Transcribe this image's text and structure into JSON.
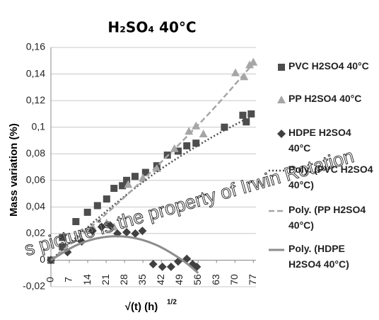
{
  "chart_data": {
    "type": "scatter",
    "title": "H₂SO₄ 40°C",
    "xlabel": "√(t) (h)",
    "xlabel_exponent": "1/2",
    "ylabel": "Mass variation (%)",
    "watermark": "s picture is the property of Irwin Rotation",
    "xlim": [
      0,
      78
    ],
    "ylim": [
      -0.02,
      0.16
    ],
    "xticks": [
      0,
      7,
      14,
      21,
      28,
      35,
      42,
      49,
      56,
      63,
      70,
      77
    ],
    "yticks": [
      {
        "value": -0.02,
        "label": "-0,02"
      },
      0,
      {
        "value": 0.02,
        "label": "0,02"
      },
      {
        "value": 0.04,
        "label": "0,04"
      },
      {
        "value": 0.06,
        "label": "0,06"
      },
      {
        "value": 0.08,
        "label": "0,08"
      },
      {
        "value": 0.1,
        "label": "0,1"
      },
      {
        "value": 0.12,
        "label": "0,12"
      },
      {
        "value": 0.14,
        "label": "0,14"
      },
      {
        "value": 0.16,
        "label": "0,16"
      }
    ],
    "grid": true,
    "legend": "right",
    "series": [
      {
        "name": "PVC H2SO4 40°C",
        "color": "#4d4d4d",
        "marker": "square",
        "x": [
          0,
          4.4,
          4.4,
          9.5,
          13.9,
          17.7,
          21.2,
          24,
          27.2,
          28.8,
          32,
          36,
          40.3,
          44.3,
          48.4,
          51.7,
          55.2,
          66,
          73,
          74.3,
          76.2
        ],
        "values": [
          0,
          0.017,
          0.01,
          0.029,
          0.036,
          0.041,
          0.046,
          0.054,
          0.056,
          0.06,
          0.063,
          0.066,
          0.071,
          0.079,
          0.082,
          0.086,
          0.088,
          0.1,
          0.109,
          0.104,
          0.11
        ]
      },
      {
        "name": "PP H2SO4 40°C",
        "color": "#a6a6a6",
        "marker": "triangle",
        "x": [
          0,
          15.8,
          21.2,
          24,
          29.4,
          35,
          40.3,
          47,
          52.5,
          55.2,
          58,
          70.2,
          73.5,
          75.6,
          77
        ],
        "values": [
          0.001,
          0.025,
          0.028,
          0.025,
          0.057,
          0.062,
          0.069,
          0.084,
          0.097,
          0.101,
          0.095,
          0.141,
          0.138,
          0.147,
          0.149
        ]
      },
      {
        "name": "HDPE H2SO4 40°C",
        "color": "#404040",
        "marker": "diamond",
        "x": [
          0,
          6.3,
          11.7,
          15.8,
          19.3,
          22.6,
          25.3,
          28.8,
          32.1,
          34.8,
          38.9,
          42.4,
          45.7,
          48.4,
          51.7,
          53.9,
          55.5
        ],
        "values": [
          0,
          0.006,
          0.014,
          0.022,
          0.025,
          0.026,
          0.02,
          0.021,
          0.02,
          0.022,
          -0.003,
          -0.005,
          -0.005,
          -0.001,
          0.001,
          -0.003,
          -0.005
        ]
      },
      {
        "name": "Poly. (PVC H2SO4 40°C)",
        "color": "#4d4d4d",
        "style": "dotted",
        "x": [
          0,
          20,
          40,
          60,
          77
        ],
        "values": [
          0,
          0.035,
          0.066,
          0.091,
          0.109
        ]
      },
      {
        "name": "Poly. (PP H2SO4 40°C)",
        "color": "#a6a6a6",
        "style": "dashed",
        "x": [
          0,
          20,
          40,
          60,
          77
        ],
        "values": [
          0,
          0.033,
          0.07,
          0.11,
          0.148
        ]
      },
      {
        "name": "Poly. (HDPE H2SO4 40°C)",
        "color": "#8c8c8c",
        "style": "solid",
        "x": [
          0,
          10,
          20,
          30,
          40,
          50,
          56
        ],
        "values": [
          0,
          0.0115,
          0.0173,
          0.0173,
          0.0115,
          0,
          -0.0097
        ]
      }
    ]
  }
}
